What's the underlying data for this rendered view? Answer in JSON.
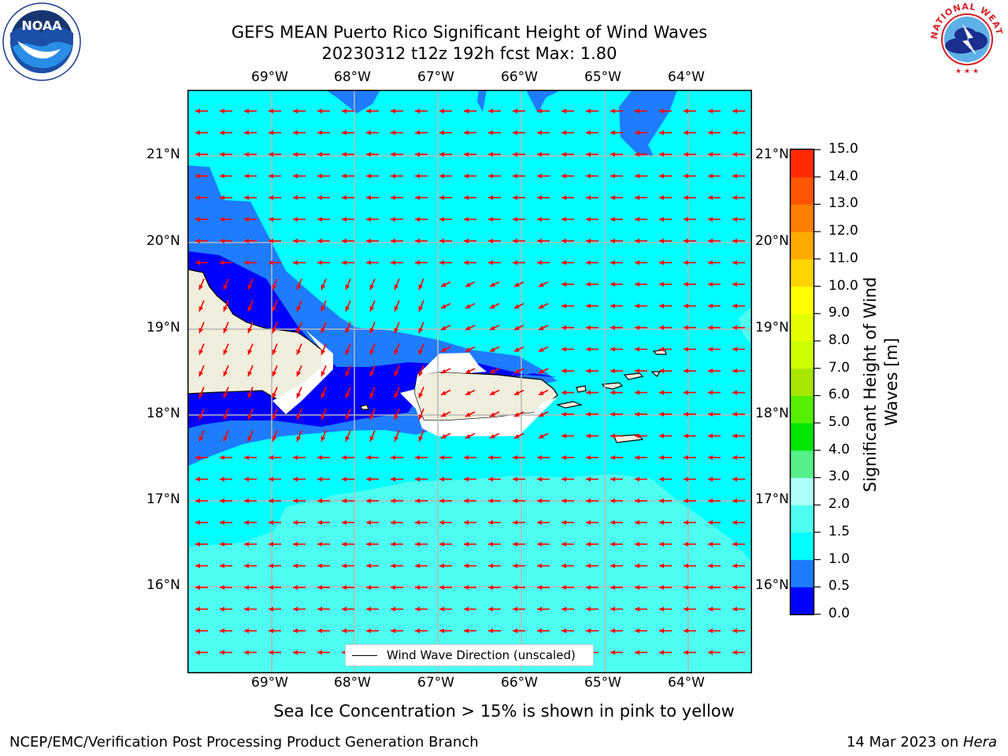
{
  "title": {
    "line1": "GEFS MEAN Puerto Rico Significant Height of Wind Waves",
    "line2": "20230312 t12z 192h fcst   Max: 1.80"
  },
  "map": {
    "lon_ticks": [
      "69°W",
      "68°W",
      "67°W",
      "66°W",
      "65°W",
      "64°W"
    ],
    "lat_ticks": [
      "21°N",
      "20°N",
      "19°N",
      "18°N",
      "17°N",
      "16°N"
    ],
    "legend_label": "Wind Wave Direction (unscaled)",
    "colors": {
      "water_0_5": "#0000ff",
      "water_1_0": "#1e7cff",
      "water_1_5": "#00ffff",
      "water_2_0": "#4dfff0",
      "land": "#f0eedc",
      "arrow": "#ff0000",
      "grid": "#b8b8b8"
    }
  },
  "colorbar": {
    "title": "Significant Height of Wind Waves [m]",
    "tick_labels": [
      "15.0",
      "14.0",
      "13.0",
      "12.0",
      "11.0",
      "10.0",
      "9.0",
      "8.0",
      "7.0",
      "6.0",
      "5.0",
      "4.0",
      "3.0",
      "2.0",
      "1.5",
      "1.0",
      "0.5",
      "0.0"
    ],
    "colors_bottom_to_top": [
      "#0000ff",
      "#1e7cff",
      "#00ffff",
      "#4dfff0",
      "#aefff8",
      "#55f08a",
      "#00e600",
      "#55f000",
      "#a8e600",
      "#ccff00",
      "#e6ff00",
      "#ffff00",
      "#ffd400",
      "#ffaa00",
      "#ff8000",
      "#ff5500",
      "#ff2a00",
      "#ff0000"
    ]
  },
  "caption": "Sea Ice Concentration > 15% is shown in pink to yellow",
  "footer": {
    "left": "NCEP/EMC/Verification Post Processing Product Generation Branch",
    "right_date": "14 Mar 2023 on ",
    "right_machine": "Hera"
  },
  "logos": {
    "noaa": "NOAA",
    "nws": "NATIONAL WEATHER SERVICE"
  }
}
